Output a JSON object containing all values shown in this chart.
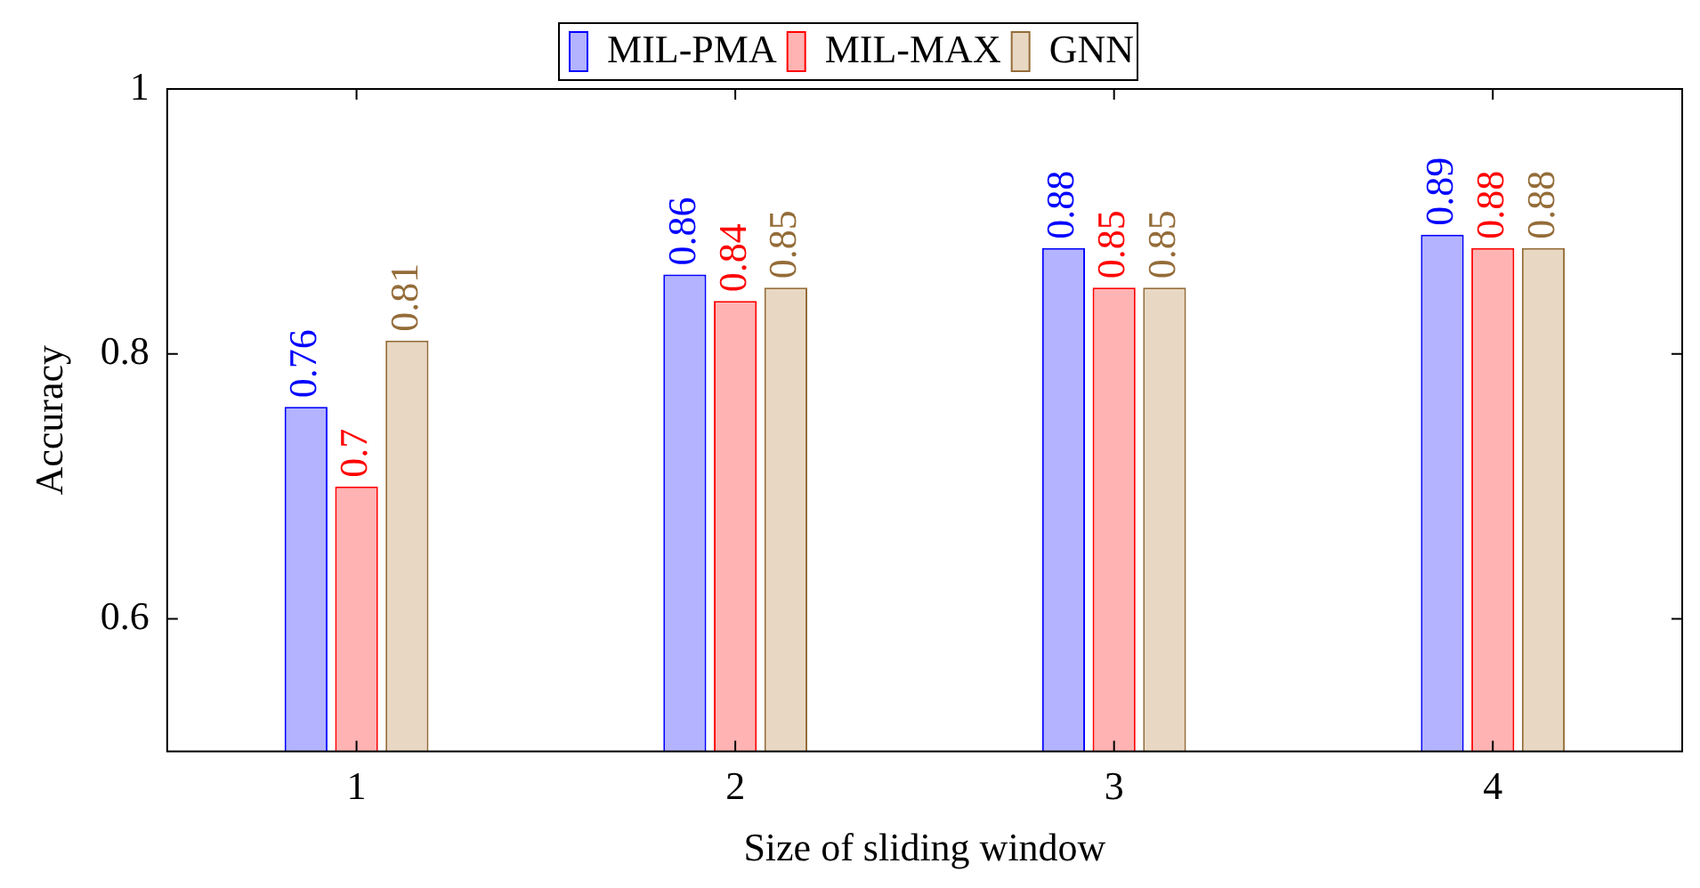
{
  "chart_data": {
    "type": "bar",
    "xlabel": "Size of sliding window",
    "ylabel": "Accuracy",
    "categories": [
      "1",
      "2",
      "3",
      "4"
    ],
    "series": [
      {
        "name": "MIL-PMA",
        "color": "#b3b3ff",
        "values": [
          0.76,
          0.86,
          0.88,
          0.89
        ]
      },
      {
        "name": "MIL-MAX",
        "color": "#ffb3b3",
        "values": [
          0.7,
          0.84,
          0.85,
          0.88
        ]
      },
      {
        "name": "GNN",
        "color": "#e8d8c3",
        "values": [
          0.81,
          0.85,
          0.85,
          0.88
        ]
      }
    ],
    "ylim": [
      0.5,
      1
    ],
    "yticks": [
      0.6,
      0.8,
      1
    ],
    "grid": false,
    "legend": "top",
    "data_labels": true
  }
}
